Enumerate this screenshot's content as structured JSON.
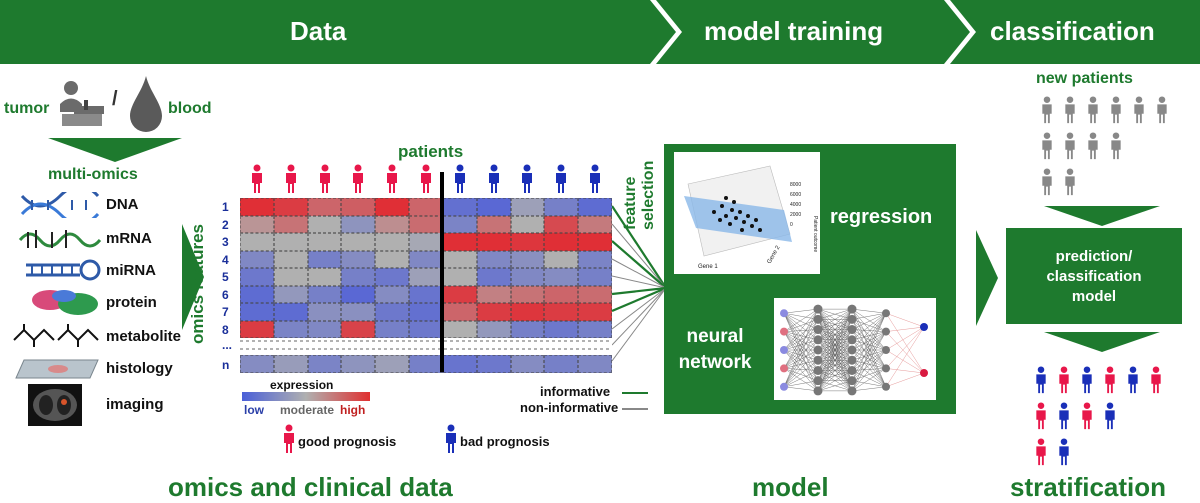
{
  "banner": {
    "data": "Data",
    "training": "model training",
    "classification": "classification",
    "color": "#1e7a2e"
  },
  "sources": {
    "tumor": "tumor",
    "separator": "/",
    "blood": "blood",
    "multi_omics": "multi-omics"
  },
  "omics": [
    {
      "label": "DNA",
      "icon": "dna-icon"
    },
    {
      "label": "mRNA",
      "icon": "mrna-icon"
    },
    {
      "label": "miRNA",
      "icon": "mirna-icon"
    },
    {
      "label": "protein",
      "icon": "protein-icon"
    },
    {
      "label": "metabolite",
      "icon": "metabolite-icon"
    },
    {
      "label": "histology",
      "icon": "histology-slide-icon"
    },
    {
      "label": "imaging",
      "icon": "ct-scan-icon"
    }
  ],
  "heatmap": {
    "title": "patients",
    "y_label": "omics features",
    "feature_selection": "feature selection",
    "row_labels": [
      "1",
      "2",
      "3",
      "4",
      "5",
      "6",
      "7",
      "8",
      "...",
      "n"
    ],
    "good_color": "#e8174a",
    "bad_color": "#1a2fb8",
    "rows": [
      [
        0.95,
        0.85,
        0.55,
        0.6,
        0.95,
        0.55,
        -0.8,
        -0.9,
        -0.2,
        -0.6,
        -0.85
      ],
      [
        0.2,
        0.45,
        0.0,
        -0.35,
        0.25,
        0.5,
        -0.55,
        0.45,
        0.0,
        0.75,
        0.4
      ],
      [
        0.0,
        0.0,
        0.0,
        0.0,
        0.0,
        -0.1,
        0.95,
        0.95,
        0.9,
        0.95,
        0.95
      ],
      [
        -0.5,
        0.0,
        -0.6,
        -0.45,
        0.0,
        -0.5,
        0.0,
        -0.5,
        -0.4,
        0.0,
        -0.55
      ],
      [
        -0.7,
        0.0,
        0.0,
        -0.6,
        -0.7,
        -0.2,
        0.0,
        -0.7,
        -0.5,
        -0.45,
        -0.6
      ],
      [
        -0.85,
        -0.3,
        -0.6,
        -0.9,
        -0.45,
        -0.75,
        0.85,
        0.35,
        0.45,
        0.55,
        0.5
      ],
      [
        -0.85,
        -0.85,
        -0.4,
        -0.4,
        -0.7,
        -0.8,
        0.55,
        0.85,
        0.9,
        0.85,
        0.85
      ],
      [
        0.85,
        -0.55,
        -0.5,
        0.8,
        -0.6,
        -0.7,
        0.0,
        -0.3,
        -0.6,
        -0.7,
        -0.6
      ],
      [
        -0.45,
        -0.25,
        -0.55,
        -0.35,
        -0.2,
        -0.6,
        -0.75,
        -0.7,
        -0.45,
        -0.6,
        -0.5
      ]
    ]
  },
  "legend": {
    "expression": "expression",
    "low": "low",
    "moderate": "moderate",
    "high": "high",
    "informative": "informative",
    "non_informative": "non-informative",
    "good": "good prognosis",
    "bad": "bad prognosis"
  },
  "model": {
    "regression": "regression",
    "neural1": "neural",
    "neural2": "network",
    "zlabel": "Patient outcome",
    "x1": "Gene 1",
    "x2": "Gene 2",
    "zticks": [
      "8000",
      "6000",
      "4000",
      "2000",
      "0"
    ]
  },
  "classification": {
    "new_patients": "new patients",
    "box1": "prediction/",
    "box2": "classification",
    "box3": "model"
  },
  "bottom": {
    "omics": "omics and clinical data",
    "model": "model",
    "stratification": "stratification"
  }
}
